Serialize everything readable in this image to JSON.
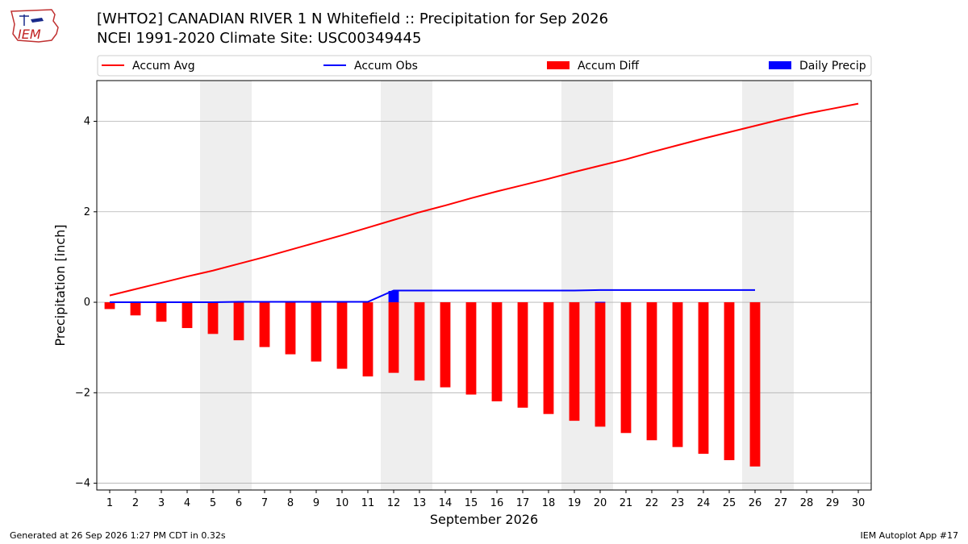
{
  "header": {
    "title_line1": "[WHTO2] CANADIAN RIVER 1 N Whitefield :: Precipitation for Sep 2026",
    "title_line2": "NCEI 1991-2020 Climate Site: USC00349445",
    "logo_text": "IEM"
  },
  "footer": {
    "generated": "Generated at 26 Sep 2026 1:27 PM CDT in 0.32s",
    "app": "IEM Autoplot App #17"
  },
  "colors": {
    "avg": "#ff0000",
    "obs": "#0000ff",
    "diff": "#ff0000",
    "daily": "#0000ff",
    "weekend_band": "#eeeeee",
    "grid": "#b0b0b0"
  },
  "chart_data": {
    "type": "bar",
    "xlabel": "September 2026",
    "ylabel": "Precipitation [inch]",
    "xlim": [
      0.5,
      30.5
    ],
    "ylim": [
      -4.15,
      4.9
    ],
    "yticks": [
      4,
      2,
      0,
      -2,
      -4
    ],
    "ytick_labels": [
      "4",
      "2",
      "0",
      "−2",
      "−4"
    ],
    "days": [
      1,
      2,
      3,
      4,
      5,
      6,
      7,
      8,
      9,
      10,
      11,
      12,
      13,
      14,
      15,
      16,
      17,
      18,
      19,
      20,
      21,
      22,
      23,
      24,
      25,
      26,
      27,
      28,
      29,
      30
    ],
    "grid": "horizontal",
    "legend_position": "top",
    "weekend_bands": [
      [
        4.5,
        6.5
      ],
      [
        11.5,
        13.5
      ],
      [
        18.5,
        20.5
      ],
      [
        25.5,
        27.5
      ]
    ],
    "series": [
      {
        "name": "Accum Avg",
        "kind": "line",
        "x": [
          1,
          2,
          3,
          4,
          5,
          6,
          7,
          8,
          9,
          10,
          11,
          12,
          13,
          14,
          15,
          16,
          17,
          18,
          19,
          20,
          21,
          22,
          23,
          24,
          25,
          26,
          27,
          28,
          29,
          30
        ],
        "values": [
          0.15,
          0.29,
          0.43,
          0.57,
          0.7,
          0.85,
          1.0,
          1.16,
          1.32,
          1.48,
          1.65,
          1.82,
          1.99,
          2.14,
          2.3,
          2.45,
          2.59,
          2.73,
          2.88,
          3.02,
          3.16,
          3.32,
          3.47,
          3.62,
          3.76,
          3.9,
          4.04,
          4.17,
          4.28,
          4.39
        ]
      },
      {
        "name": "Accum Obs",
        "kind": "line",
        "x": [
          1,
          2,
          3,
          4,
          5,
          6,
          7,
          8,
          9,
          10,
          11,
          12,
          13,
          14,
          15,
          16,
          17,
          18,
          19,
          20,
          21,
          22,
          23,
          24,
          25,
          26
        ],
        "values": [
          0.0,
          0.0,
          0.0,
          0.0,
          0.0,
          0.01,
          0.01,
          0.01,
          0.01,
          0.01,
          0.01,
          0.26,
          0.26,
          0.26,
          0.26,
          0.26,
          0.26,
          0.26,
          0.26,
          0.27,
          0.27,
          0.27,
          0.27,
          0.27,
          0.27,
          0.27
        ]
      },
      {
        "name": "Accum Diff",
        "kind": "bar",
        "x": [
          1,
          2,
          3,
          4,
          5,
          6,
          7,
          8,
          9,
          10,
          11,
          12,
          13,
          14,
          15,
          16,
          17,
          18,
          19,
          20,
          21,
          22,
          23,
          24,
          25,
          26
        ],
        "values": [
          -0.15,
          -0.29,
          -0.43,
          -0.57,
          -0.7,
          -0.84,
          -0.99,
          -1.15,
          -1.31,
          -1.47,
          -1.64,
          -1.56,
          -1.73,
          -1.88,
          -2.04,
          -2.19,
          -2.33,
          -2.47,
          -2.62,
          -2.75,
          -2.89,
          -3.05,
          -3.2,
          -3.35,
          -3.49,
          -3.63
        ]
      },
      {
        "name": "Daily Precip",
        "kind": "bar",
        "x": [
          1,
          2,
          3,
          4,
          5,
          6,
          7,
          8,
          9,
          10,
          11,
          12,
          13,
          14,
          15,
          16,
          17,
          18,
          19,
          20,
          21,
          22,
          23,
          24,
          25,
          26
        ],
        "values": [
          0,
          0,
          0,
          0,
          0,
          0.01,
          0,
          0,
          0,
          0,
          0,
          0.25,
          0,
          0,
          0,
          0,
          0,
          0,
          0,
          0.01,
          0,
          0,
          0,
          0,
          0,
          0
        ]
      }
    ]
  }
}
